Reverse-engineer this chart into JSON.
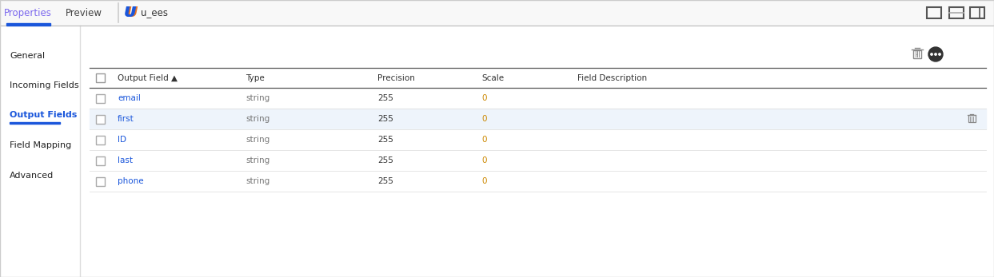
{
  "bg_color": "#ffffff",
  "border_color": "#cccccc",
  "tabs": [
    "Properties",
    "Preview"
  ],
  "active_tab_color": "#7b68ee",
  "tab_underline_color": "#1a56db",
  "icon_label": "u_ees",
  "icon_color_left": "#1a56db",
  "icon_color_right": "#e05c00",
  "sidebar_items": [
    "General",
    "Incoming Fields",
    "Output Fields",
    "Field Mapping",
    "Advanced"
  ],
  "active_sidebar_item": "Output Fields",
  "active_sidebar_color": "#1a56db",
  "sidebar_underline_color": "#1a56db",
  "inactive_sidebar_color": "#222222",
  "table_col_headers": [
    "Output Field ▲",
    "Type",
    "Precision",
    "Scale",
    "Field Description"
  ],
  "rows": [
    {
      "name": "email",
      "type": "string",
      "precision": "255",
      "scale": "0",
      "highlighted": false
    },
    {
      "name": "first",
      "type": "string",
      "precision": "255",
      "scale": "0",
      "highlighted": true
    },
    {
      "name": "ID",
      "type": "string",
      "precision": "255",
      "scale": "0",
      "highlighted": false
    },
    {
      "name": "last",
      "type": "string",
      "precision": "255",
      "scale": "0",
      "highlighted": false
    },
    {
      "name": "phone",
      "type": "string",
      "precision": "255",
      "scale": "0",
      "highlighted": false
    }
  ],
  "row_field_color": "#1a56db",
  "row_type_color": "#777777",
  "row_precision_color": "#333333",
  "row_scale_color": "#cc8800",
  "row_highlight_bg": "#eef4fb",
  "divider_color": "#e0e0e0",
  "header_line_color": "#333333",
  "tab_line_color": "#cccccc"
}
